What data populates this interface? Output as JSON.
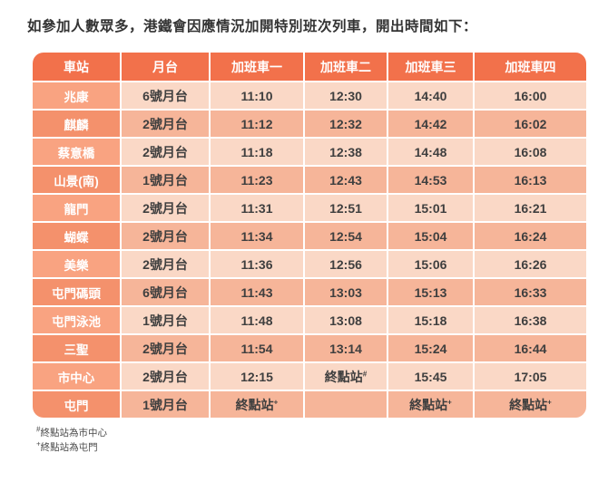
{
  "page": {
    "title": "如參加人數眾多，港鐵會因應情況加開特別班次列車，開出時間如下："
  },
  "table": {
    "headers": [
      "車站",
      "月台",
      "加班車一",
      "加班車二",
      "加班車三",
      "加班車四"
    ],
    "rows": [
      {
        "station": "兆康",
        "platform": "6號月台",
        "times": [
          "11:10",
          "12:30",
          "14:40",
          "16:00"
        ]
      },
      {
        "station": "麒麟",
        "platform": "2號月台",
        "times": [
          "11:12",
          "12:32",
          "14:42",
          "16:02"
        ]
      },
      {
        "station": "蔡意橋",
        "platform": "2號月台",
        "times": [
          "11:18",
          "12:38",
          "14:48",
          "16:08"
        ]
      },
      {
        "station": "山景(南)",
        "platform": "1號月台",
        "times": [
          "11:23",
          "12:43",
          "14:53",
          "16:13"
        ]
      },
      {
        "station": "龍門",
        "platform": "2號月台",
        "times": [
          "11:31",
          "12:51",
          "15:01",
          "16:21"
        ]
      },
      {
        "station": "蝴蝶",
        "platform": "2號月台",
        "times": [
          "11:34",
          "12:54",
          "15:04",
          "16:24"
        ]
      },
      {
        "station": "美樂",
        "platform": "2號月台",
        "times": [
          "11:36",
          "12:56",
          "15:06",
          "16:26"
        ]
      },
      {
        "station": "屯門碼頭",
        "platform": "6號月台",
        "times": [
          "11:43",
          "13:03",
          "15:13",
          "16:33"
        ]
      },
      {
        "station": "屯門泳池",
        "platform": "1號月台",
        "times": [
          "11:48",
          "13:08",
          "15:18",
          "16:38"
        ]
      },
      {
        "station": "三聖",
        "platform": "2號月台",
        "times": [
          "11:54",
          "13:14",
          "15:24",
          "16:44"
        ]
      },
      {
        "station": "市中心",
        "platform": "2號月台",
        "times": [
          "12:15",
          "終點站#",
          "15:45",
          "17:05"
        ]
      },
      {
        "station": "屯門",
        "platform": "1號月台",
        "times": [
          "終點站+",
          "",
          "終點站+",
          "終點站+"
        ]
      }
    ]
  },
  "footnotes": [
    "#終點站為市中心",
    "+終點站為屯門"
  ],
  "colors": {
    "header_bg": "#F2714B",
    "station_odd": "#F9A381",
    "station_even": "#F4916C",
    "cell_odd": "#FAD8C6",
    "cell_even": "#F6B599",
    "text_dark": "#3F3F3F",
    "footnote_color": "#4A4A4A",
    "page_bg": "#FFFFFF"
  }
}
